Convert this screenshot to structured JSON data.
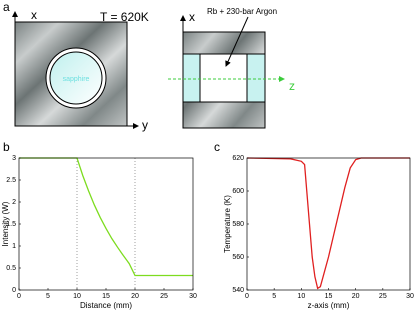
{
  "panel_a": {
    "label": "a",
    "temperature": "T = 620K",
    "left_x": "x",
    "left_y": "y",
    "window": "sapphire",
    "right_x": "x",
    "cell": "Rb + 230-bar Argon",
    "z": "z"
  },
  "chart_data": [
    {
      "type": "line",
      "panel_label": "b",
      "xlabel": "Distance (mm)",
      "ylabel": "Intensity (W)",
      "xlim": [
        0,
        30
      ],
      "ylim": [
        0,
        3
      ],
      "xticks": [
        0,
        5,
        10,
        15,
        20,
        25,
        30
      ],
      "yticks": [
        0,
        0.5,
        1,
        1.5,
        2,
        2.5,
        3
      ],
      "vlines": [
        10,
        20
      ],
      "color": "#7ddc1f",
      "x": [
        0,
        10,
        11,
        12,
        13,
        14,
        15,
        16,
        17,
        18,
        19,
        20,
        30
      ],
      "values": [
        3,
        3,
        2.6,
        2.25,
        1.93,
        1.65,
        1.4,
        1.17,
        0.97,
        0.78,
        0.6,
        0.33,
        0.33
      ]
    },
    {
      "type": "line",
      "panel_label": "c",
      "xlabel": "z-axis (mm)",
      "ylabel": "Temperature (K)",
      "xlim": [
        0,
        30
      ],
      "ylim": [
        540,
        620
      ],
      "xticks": [
        0,
        5,
        10,
        15,
        20,
        25,
        30
      ],
      "yticks": [
        540,
        560,
        580,
        600,
        620
      ],
      "vlines": [],
      "color": "#e02020",
      "x": [
        0,
        8,
        10,
        10.6,
        11,
        11.5,
        12,
        12.5,
        13,
        13.5,
        14,
        15,
        16,
        17,
        18,
        19,
        20,
        21,
        30
      ],
      "values": [
        620,
        619.5,
        618,
        616,
        600,
        580,
        560,
        548,
        541,
        542,
        548,
        560,
        574,
        588,
        602,
        614,
        619,
        620,
        620
      ]
    }
  ]
}
